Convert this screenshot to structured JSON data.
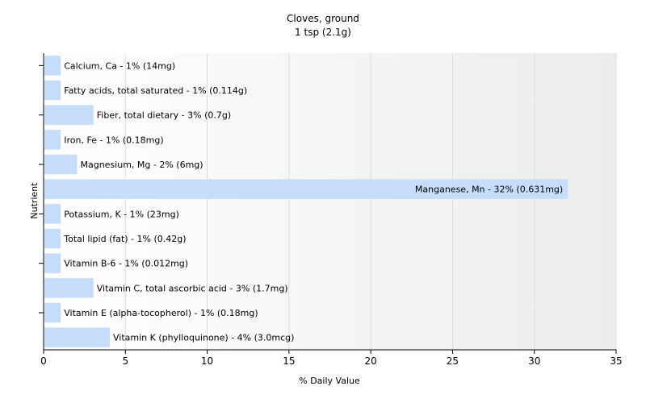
{
  "chart_data": {
    "type": "bar",
    "orientation": "horizontal",
    "title": "Cloves, ground",
    "subtitle": "1 tsp (2.1g)",
    "xlabel": "% Daily Value",
    "ylabel": "Nutrient",
    "xlim": [
      0,
      35
    ],
    "xticks": [
      0,
      5,
      10,
      15,
      20,
      25,
      30,
      35
    ],
    "grid": true,
    "bar_color": "#c6defc",
    "categories": [
      "Calcium, Ca",
      "Fatty acids, total saturated",
      "Fiber, total dietary",
      "Iron, Fe",
      "Magnesium, Mg",
      "Manganese, Mn",
      "Potassium, K",
      "Total lipid (fat)",
      "Vitamin B-6",
      "Vitamin C, total ascorbic acid",
      "Vitamin E (alpha-tocopherol)",
      "Vitamin K (phylloquinone)"
    ],
    "values": [
      1,
      1,
      3,
      1,
      2,
      32,
      1,
      1,
      1,
      3,
      1,
      4
    ],
    "labels": [
      "Calcium, Ca - 1% (14mg)",
      "Fatty acids, total saturated - 1% (0.114g)",
      "Fiber, total dietary - 3% (0.7g)",
      "Iron, Fe - 1% (0.18mg)",
      "Magnesium, Mg - 2% (6mg)",
      "Manganese, Mn - 32% (0.631mg)",
      "Potassium, K - 1% (23mg)",
      "Total lipid (fat) - 1% (0.42g)",
      "Vitamin B-6 - 1% (0.012mg)",
      "Vitamin C, total ascorbic acid - 3% (1.7mg)",
      "Vitamin E (alpha-tocopherol) - 1% (0.18mg)",
      "Vitamin K (phylloquinone) - 4% (3.0mcg)"
    ]
  }
}
